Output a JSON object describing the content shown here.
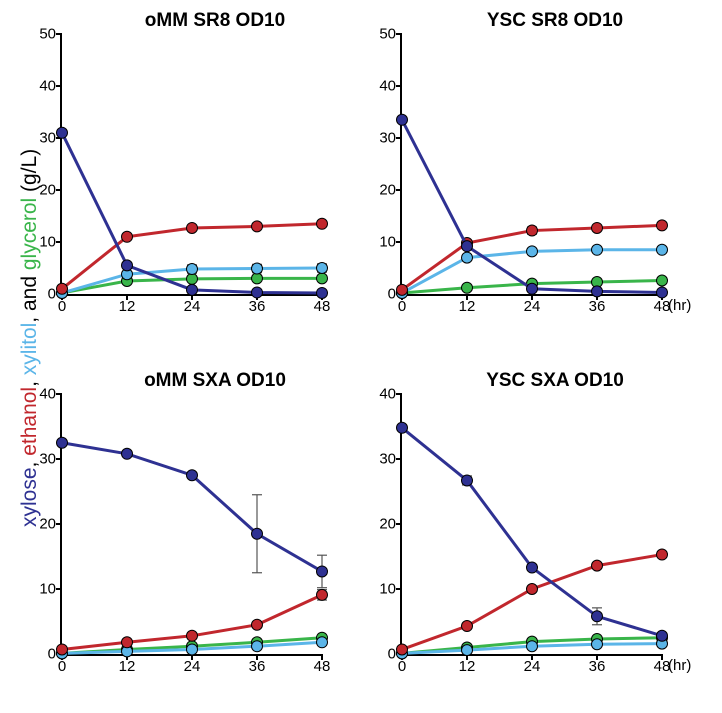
{
  "global": {
    "y_axis_label_parts": [
      {
        "text": "xylose",
        "color": "#2e3192"
      },
      {
        "text": ", ",
        "color": "#000000"
      },
      {
        "text": "ethanol",
        "color": "#c1272d"
      },
      {
        "text": ", ",
        "color": "#000000"
      },
      {
        "text": "xylitol",
        "color": "#5bb5e8"
      },
      {
        "text": ", and ",
        "color": "#000000"
      },
      {
        "text": "glycerol",
        "color": "#39b54a"
      },
      {
        "text": " (g/L)",
        "color": "#000000"
      }
    ],
    "x_unit": "(hr)",
    "background_color": "#ffffff",
    "line_width": 3,
    "marker_radius": 5.5,
    "marker_stroke": "#000000",
    "marker_stroke_width": 1,
    "error_bar_color": "#555555",
    "error_bar_width": 1.2,
    "font_family": "Arial, Helvetica, sans-serif",
    "title_fontsize": 19,
    "tick_fontsize": 15
  },
  "series_style": {
    "xylose": {
      "color": "#2e3192"
    },
    "ethanol": {
      "color": "#c1272d"
    },
    "xylitol": {
      "color": "#5bb5e8"
    },
    "glycerol": {
      "color": "#39b54a"
    }
  },
  "panels": [
    {
      "id": "p0",
      "title": "oMM SR8 OD10",
      "xlim": [
        0,
        48
      ],
      "ylim": [
        0,
        50
      ],
      "xticks": [
        0,
        12,
        24,
        36,
        48
      ],
      "yticks": [
        0,
        10,
        20,
        30,
        40,
        50
      ],
      "show_hr": false,
      "series": {
        "xylose": {
          "x": [
            0,
            12,
            24,
            36,
            48
          ],
          "y": [
            31.0,
            5.5,
            0.8,
            0.3,
            0.2
          ],
          "err": [
            0,
            0,
            0,
            0,
            0
          ]
        },
        "ethanol": {
          "x": [
            0,
            12,
            24,
            36,
            48
          ],
          "y": [
            1.0,
            11.0,
            12.7,
            13.0,
            13.5
          ],
          "err": [
            0,
            0,
            0,
            0,
            0
          ]
        },
        "xylitol": {
          "x": [
            0,
            12,
            24,
            36,
            48
          ],
          "y": [
            0.2,
            3.8,
            4.8,
            4.9,
            5.0
          ],
          "err": [
            0,
            0,
            0.8,
            0.8,
            0.8
          ]
        },
        "glycerol": {
          "x": [
            0,
            12,
            24,
            36,
            48
          ],
          "y": [
            0.2,
            2.5,
            2.9,
            3.0,
            3.0
          ],
          "err": [
            0,
            0,
            0,
            0,
            0
          ]
        }
      }
    },
    {
      "id": "p1",
      "title": "YSC SR8 OD10",
      "xlim": [
        0,
        48
      ],
      "ylim": [
        0,
        50
      ],
      "xticks": [
        0,
        12,
        24,
        36,
        48
      ],
      "yticks": [
        0,
        10,
        20,
        30,
        40,
        50
      ],
      "show_hr": true,
      "series": {
        "xylose": {
          "x": [
            0,
            12,
            24,
            36,
            48
          ],
          "y": [
            33.5,
            9.2,
            1.0,
            0.5,
            0.3
          ],
          "err": [
            0,
            0,
            0,
            0,
            0
          ]
        },
        "ethanol": {
          "x": [
            0,
            12,
            24,
            36,
            48
          ],
          "y": [
            0.8,
            9.8,
            12.2,
            12.7,
            13.2
          ],
          "err": [
            0,
            0,
            0.7,
            0,
            0
          ]
        },
        "xylitol": {
          "x": [
            0,
            12,
            24,
            36,
            48
          ],
          "y": [
            0.2,
            7.0,
            8.2,
            8.5,
            8.5
          ],
          "err": [
            0,
            0,
            0,
            0,
            0
          ]
        },
        "glycerol": {
          "x": [
            0,
            12,
            24,
            36,
            48
          ],
          "y": [
            0.2,
            1.2,
            2.0,
            2.3,
            2.6
          ],
          "err": [
            0,
            0,
            0,
            0,
            0
          ]
        }
      }
    },
    {
      "id": "p2",
      "title": "oMM SXA OD10",
      "xlim": [
        0,
        48
      ],
      "ylim": [
        0,
        40
      ],
      "xticks": [
        0,
        12,
        24,
        36,
        48
      ],
      "yticks": [
        0,
        10,
        20,
        30,
        40
      ],
      "show_hr": false,
      "series": {
        "xylose": {
          "x": [
            0,
            12,
            24,
            36,
            48
          ],
          "y": [
            32.5,
            30.8,
            27.5,
            18.5,
            12.7
          ],
          "err": [
            0,
            0,
            0,
            6.0,
            2.5
          ]
        },
        "ethanol": {
          "x": [
            0,
            12,
            24,
            36,
            48
          ],
          "y": [
            0.7,
            1.8,
            2.8,
            4.5,
            9.1
          ],
          "err": [
            0,
            0,
            0,
            0,
            0.8
          ]
        },
        "xylitol": {
          "x": [
            0,
            12,
            24,
            36,
            48
          ],
          "y": [
            0.1,
            0.4,
            0.7,
            1.2,
            1.8
          ],
          "err": [
            0,
            0,
            0,
            0,
            0
          ]
        },
        "glycerol": {
          "x": [
            0,
            12,
            24,
            36,
            48
          ],
          "y": [
            0.1,
            0.7,
            1.2,
            1.8,
            2.5
          ],
          "err": [
            0,
            0,
            0,
            0,
            0
          ]
        }
      }
    },
    {
      "id": "p3",
      "title": "YSC SXA OD10",
      "xlim": [
        0,
        48
      ],
      "ylim": [
        0,
        40
      ],
      "xticks": [
        0,
        12,
        24,
        36,
        48
      ],
      "yticks": [
        0,
        10,
        20,
        30,
        40
      ],
      "show_hr": true,
      "series": {
        "xylose": {
          "x": [
            0,
            12,
            24,
            36,
            48
          ],
          "y": [
            34.8,
            26.7,
            13.3,
            5.8,
            2.8
          ],
          "err": [
            0,
            0.7,
            0,
            1.3,
            0
          ]
        },
        "ethanol": {
          "x": [
            0,
            12,
            24,
            36,
            48
          ],
          "y": [
            0.7,
            4.3,
            10.0,
            13.6,
            15.3
          ],
          "err": [
            0,
            0,
            0,
            0,
            0
          ]
        },
        "xylitol": {
          "x": [
            0,
            12,
            24,
            36,
            48
          ],
          "y": [
            0.1,
            0.6,
            1.2,
            1.5,
            1.6
          ],
          "err": [
            0,
            0,
            0,
            0,
            0
          ]
        },
        "glycerol": {
          "x": [
            0,
            12,
            24,
            36,
            48
          ],
          "y": [
            0.1,
            1.0,
            1.9,
            2.3,
            2.5
          ],
          "err": [
            0,
            0,
            0,
            0,
            0
          ]
        }
      }
    }
  ]
}
